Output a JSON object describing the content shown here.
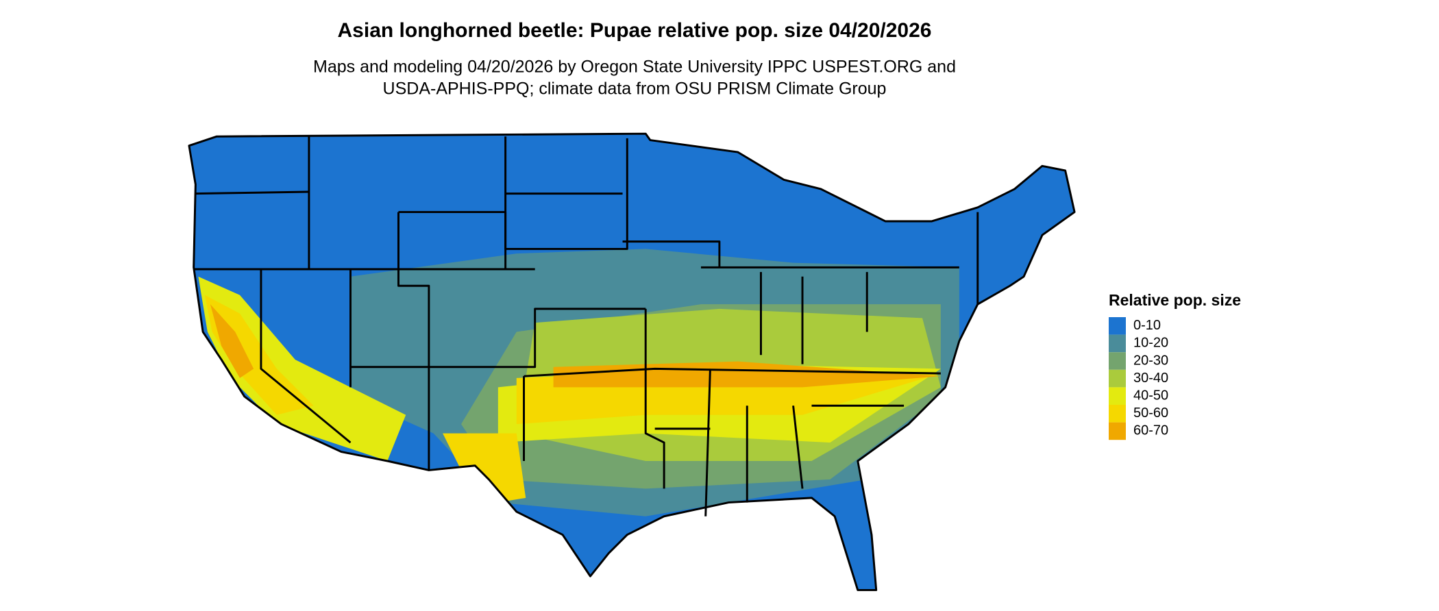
{
  "title": "Asian longhorned beetle: Pupae relative pop. size 04/20/2026",
  "subtitle_lines": [
    "Maps and modeling 04/20/2026 by Oregon State University IPPC USPEST.ORG and",
    "USDA-APHIS-PPQ; climate data from OSU PRISM Climate Group"
  ],
  "legend": {
    "title": "Relative pop. size",
    "items": [
      {
        "label": "0-10",
        "color": "#1c74d0"
      },
      {
        "label": "10-20",
        "color": "#4a8c9a"
      },
      {
        "label": "20-30",
        "color": "#74a46e"
      },
      {
        "label": "30-40",
        "color": "#aacb3c"
      },
      {
        "label": "40-50",
        "color": "#e3ea10"
      },
      {
        "label": "50-60",
        "color": "#f5d800"
      },
      {
        "label": "60-70",
        "color": "#f0a800"
      }
    ]
  }
}
